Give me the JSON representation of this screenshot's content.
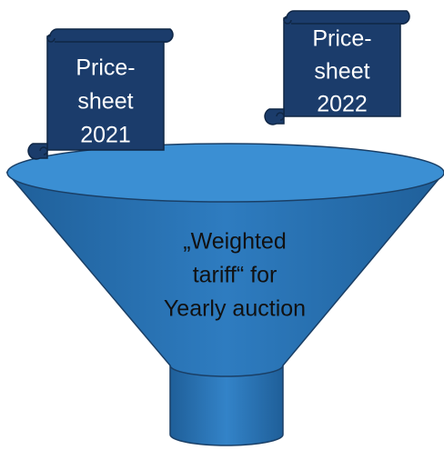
{
  "scrolls": [
    {
      "lines": [
        "Price-",
        "sheet",
        "2021"
      ]
    },
    {
      "lines": [
        "Price-",
        "sheet",
        "2022"
      ]
    }
  ],
  "funnel": {
    "lines": [
      "„Weighted",
      "tariff“ for",
      "Yearly auction"
    ]
  }
}
